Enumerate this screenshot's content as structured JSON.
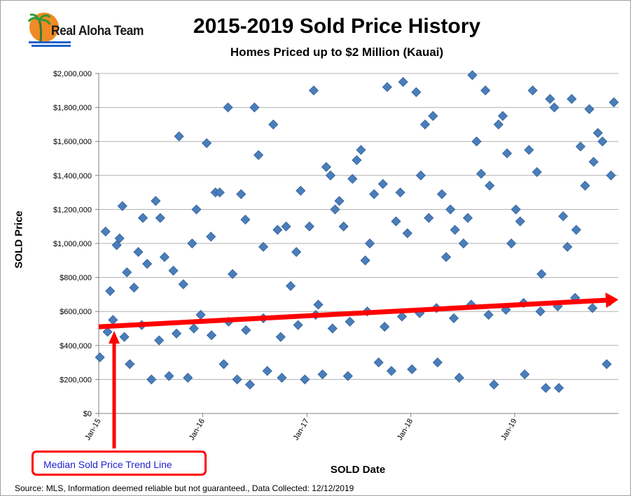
{
  "logo": {
    "text": "Real Aloha Team"
  },
  "title": "2015-2019 Sold Price History",
  "subtitle": "Homes Priced up to $2 Million (Kauai)",
  "source": "Source: MLS, Information deemed reliable but not guaranteed., Data Collected: 12/12/2019",
  "callout": {
    "text": "Median Sold Price Trend Line"
  },
  "colors": {
    "point": "#4a7ebb",
    "point_edge": "#2f5d96",
    "trend": "#ff0000",
    "grid": "#b0b0b0"
  },
  "chart_data": {
    "type": "scatter",
    "xlabel": "SOLD Date",
    "ylabel": "SOLD Price",
    "ylim": [
      0,
      2000000
    ],
    "xlim": [
      "2015-01-01",
      "2019-12-31"
    ],
    "y_ticks": [
      "$0",
      "$200,000",
      "$400,000",
      "$600,000",
      "$800,000",
      "$1,000,000",
      "$1,200,000",
      "$1,400,000",
      "$1,600,000",
      "$1,800,000",
      "$2,000,000"
    ],
    "x_ticks": [
      "Jan-15",
      "Jan-16",
      "Jan-17",
      "Jan-18",
      "Jan-19"
    ],
    "grid": "horizontal",
    "trend_line": {
      "name": "Median Sold Price Trend Line",
      "start": [
        "2015-01-01",
        510000
      ],
      "end": [
        "2019-12-31",
        670000
      ]
    },
    "points": [
      [
        "2015-01-05",
        330000
      ],
      [
        "2015-01-25",
        1070000
      ],
      [
        "2015-02-10",
        720000
      ],
      [
        "2015-02-20",
        550000
      ],
      [
        "2015-03-05",
        990000
      ],
      [
        "2015-03-15",
        1030000
      ],
      [
        "2015-03-25",
        1220000
      ],
      [
        "2015-04-10",
        830000
      ],
      [
        "2015-04-20",
        290000
      ],
      [
        "2015-05-05",
        740000
      ],
      [
        "2015-05-20",
        950000
      ],
      [
        "2015-06-05",
        1150000
      ],
      [
        "2015-06-20",
        880000
      ],
      [
        "2015-07-05",
        200000
      ],
      [
        "2015-07-20",
        1250000
      ],
      [
        "2015-08-05",
        1150000
      ],
      [
        "2015-08-20",
        920000
      ],
      [
        "2015-09-05",
        220000
      ],
      [
        "2015-09-20",
        840000
      ],
      [
        "2015-10-10",
        1630000
      ],
      [
        "2015-10-25",
        760000
      ],
      [
        "2015-11-10",
        210000
      ],
      [
        "2015-11-25",
        1000000
      ],
      [
        "2015-12-10",
        1200000
      ],
      [
        "2015-12-25",
        580000
      ],
      [
        "2016-01-15",
        1590000
      ],
      [
        "2016-01-30",
        1040000
      ],
      [
        "2016-02-15",
        1300000
      ],
      [
        "2016-03-01",
        1300000
      ],
      [
        "2016-03-15",
        290000
      ],
      [
        "2016-03-30",
        1800000
      ],
      [
        "2016-04-15",
        820000
      ],
      [
        "2016-05-01",
        200000
      ],
      [
        "2016-05-15",
        1290000
      ],
      [
        "2016-05-30",
        1140000
      ],
      [
        "2016-06-15",
        170000
      ],
      [
        "2016-07-01",
        1800000
      ],
      [
        "2016-07-15",
        1520000
      ],
      [
        "2016-08-01",
        980000
      ],
      [
        "2016-08-15",
        250000
      ],
      [
        "2016-09-05",
        1700000
      ],
      [
        "2016-09-20",
        1080000
      ],
      [
        "2016-10-05",
        210000
      ],
      [
        "2016-10-20",
        1100000
      ],
      [
        "2016-11-05",
        750000
      ],
      [
        "2016-11-25",
        950000
      ],
      [
        "2016-12-10",
        1310000
      ],
      [
        "2016-12-25",
        200000
      ],
      [
        "2017-01-10",
        1100000
      ],
      [
        "2017-01-25",
        1900000
      ],
      [
        "2017-02-10",
        640000
      ],
      [
        "2017-02-25",
        230000
      ],
      [
        "2017-03-10",
        1450000
      ],
      [
        "2017-03-25",
        1400000
      ],
      [
        "2017-04-10",
        1200000
      ],
      [
        "2017-04-25",
        1250000
      ],
      [
        "2017-05-10",
        1100000
      ],
      [
        "2017-05-25",
        220000
      ],
      [
        "2017-06-10",
        1380000
      ],
      [
        "2017-06-25",
        1490000
      ],
      [
        "2017-07-10",
        1550000
      ],
      [
        "2017-07-25",
        900000
      ],
      [
        "2017-08-10",
        1000000
      ],
      [
        "2017-08-25",
        1290000
      ],
      [
        "2017-09-10",
        300000
      ],
      [
        "2017-09-25",
        1350000
      ],
      [
        "2017-10-10",
        1920000
      ],
      [
        "2017-10-25",
        250000
      ],
      [
        "2017-11-10",
        1130000
      ],
      [
        "2017-11-25",
        1300000
      ],
      [
        "2017-12-05",
        1950000
      ],
      [
        "2017-12-20",
        1060000
      ],
      [
        "2018-01-05",
        260000
      ],
      [
        "2018-01-20",
        1890000
      ],
      [
        "2018-02-05",
        1400000
      ],
      [
        "2018-02-20",
        1700000
      ],
      [
        "2018-03-05",
        1150000
      ],
      [
        "2018-03-20",
        1750000
      ],
      [
        "2018-04-05",
        300000
      ],
      [
        "2018-04-20",
        1290000
      ],
      [
        "2018-05-05",
        920000
      ],
      [
        "2018-05-20",
        1200000
      ],
      [
        "2018-06-05",
        1080000
      ],
      [
        "2018-06-20",
        210000
      ],
      [
        "2018-07-05",
        1000000
      ],
      [
        "2018-07-20",
        1150000
      ],
      [
        "2018-08-05",
        1990000
      ],
      [
        "2018-08-20",
        1600000
      ],
      [
        "2018-09-05",
        1410000
      ],
      [
        "2018-09-20",
        1900000
      ],
      [
        "2018-10-05",
        1340000
      ],
      [
        "2018-10-20",
        170000
      ],
      [
        "2018-11-05",
        1700000
      ],
      [
        "2018-11-20",
        1750000
      ],
      [
        "2018-12-05",
        1530000
      ],
      [
        "2018-12-20",
        1000000
      ],
      [
        "2019-01-05",
        1200000
      ],
      [
        "2019-01-20",
        1130000
      ],
      [
        "2019-02-05",
        230000
      ],
      [
        "2019-02-20",
        1550000
      ],
      [
        "2019-03-05",
        1900000
      ],
      [
        "2019-03-20",
        1420000
      ],
      [
        "2019-04-05",
        820000
      ],
      [
        "2019-04-20",
        150000
      ],
      [
        "2019-05-05",
        1850000
      ],
      [
        "2019-05-20",
        1800000
      ],
      [
        "2019-06-05",
        150000
      ],
      [
        "2019-06-20",
        1160000
      ],
      [
        "2019-07-05",
        980000
      ],
      [
        "2019-07-20",
        1850000
      ],
      [
        "2019-08-05",
        1080000
      ],
      [
        "2019-08-20",
        1570000
      ],
      [
        "2019-09-05",
        1340000
      ],
      [
        "2019-09-20",
        1790000
      ],
      [
        "2019-10-05",
        1480000
      ],
      [
        "2019-10-20",
        1650000
      ],
      [
        "2019-11-05",
        1600000
      ],
      [
        "2019-11-20",
        290000
      ],
      [
        "2019-12-05",
        1400000
      ],
      [
        "2019-12-15",
        1830000
      ],
      [
        "2015-02-01",
        480000
      ],
      [
        "2015-04-01",
        450000
      ],
      [
        "2015-06-01",
        520000
      ],
      [
        "2015-08-01",
        430000
      ],
      [
        "2015-10-01",
        470000
      ],
      [
        "2015-12-01",
        500000
      ],
      [
        "2016-02-01",
        460000
      ],
      [
        "2016-04-01",
        540000
      ],
      [
        "2016-06-01",
        490000
      ],
      [
        "2016-08-01",
        560000
      ],
      [
        "2016-10-01",
        450000
      ],
      [
        "2016-12-01",
        520000
      ],
      [
        "2017-02-01",
        580000
      ],
      [
        "2017-04-01",
        500000
      ],
      [
        "2017-06-01",
        540000
      ],
      [
        "2017-08-01",
        600000
      ],
      [
        "2017-10-01",
        510000
      ],
      [
        "2017-12-01",
        570000
      ],
      [
        "2018-02-01",
        590000
      ],
      [
        "2018-04-01",
        620000
      ],
      [
        "2018-06-01",
        560000
      ],
      [
        "2018-08-01",
        640000
      ],
      [
        "2018-10-01",
        580000
      ],
      [
        "2018-12-01",
        610000
      ],
      [
        "2019-02-01",
        650000
      ],
      [
        "2019-04-01",
        600000
      ],
      [
        "2019-06-01",
        630000
      ],
      [
        "2019-08-01",
        680000
      ],
      [
        "2019-10-01",
        620000
      ],
      [
        "2019-12-01",
        660000
      ]
    ]
  }
}
